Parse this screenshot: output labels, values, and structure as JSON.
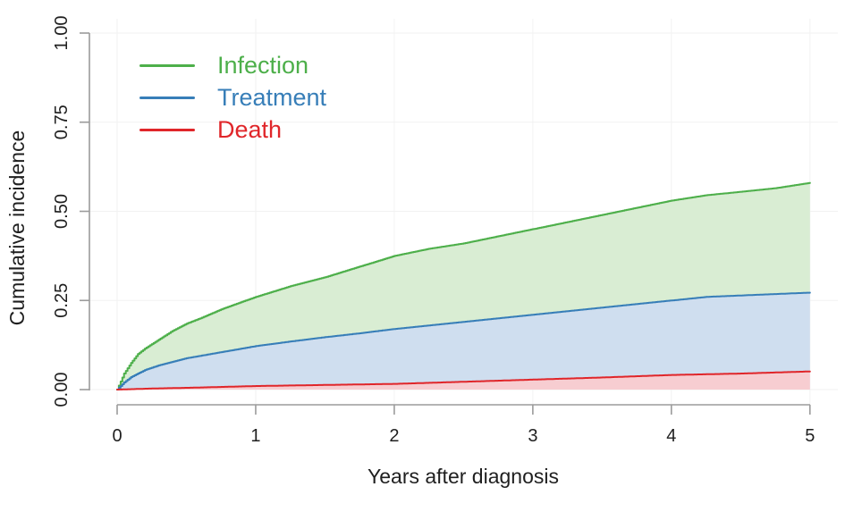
{
  "chart_data": {
    "type": "area",
    "title": "",
    "xlabel": "Years after diagnosis",
    "ylabel": "Cumulative incidence",
    "xlim": [
      0,
      5
    ],
    "ylim": [
      0,
      1
    ],
    "grid": true,
    "grid_color": "#f2f2f2",
    "axis_color": "#9b9b9b",
    "text_color": "#1f1f1f",
    "legend_position": "top-left",
    "x_ticks": [
      {
        "value": 0,
        "label": "0"
      },
      {
        "value": 1,
        "label": "1"
      },
      {
        "value": 2,
        "label": "2"
      },
      {
        "value": 3,
        "label": "3"
      },
      {
        "value": 4,
        "label": "4"
      },
      {
        "value": 5,
        "label": "5"
      }
    ],
    "y_ticks": [
      {
        "value": 0.0,
        "label": "0.00"
      },
      {
        "value": 0.25,
        "label": "0.25"
      },
      {
        "value": 0.5,
        "label": "0.50"
      },
      {
        "value": 0.75,
        "label": "0.75"
      },
      {
        "value": 1.0,
        "label": "1.00"
      }
    ],
    "series": [
      {
        "name": "Infection",
        "color": "#4daf4a",
        "fill": "#d9edd3",
        "points": [
          [
            0,
            0
          ],
          [
            0.05,
            0.045
          ],
          [
            0.1,
            0.075
          ],
          [
            0.15,
            0.1
          ],
          [
            0.2,
            0.115
          ],
          [
            0.3,
            0.14
          ],
          [
            0.4,
            0.165
          ],
          [
            0.5,
            0.185
          ],
          [
            0.6,
            0.2
          ],
          [
            0.75,
            0.225
          ],
          [
            1,
            0.26
          ],
          [
            1.25,
            0.29
          ],
          [
            1.5,
            0.315
          ],
          [
            1.75,
            0.345
          ],
          [
            2,
            0.375
          ],
          [
            2.25,
            0.395
          ],
          [
            2.5,
            0.41
          ],
          [
            2.75,
            0.43
          ],
          [
            3,
            0.45
          ],
          [
            3.25,
            0.47
          ],
          [
            3.5,
            0.49
          ],
          [
            3.75,
            0.51
          ],
          [
            4,
            0.53
          ],
          [
            4.25,
            0.545
          ],
          [
            4.5,
            0.555
          ],
          [
            4.75,
            0.565
          ],
          [
            5,
            0.58
          ]
        ]
      },
      {
        "name": "Treatment",
        "color": "#377eb8",
        "fill": "#cfdeef",
        "points": [
          [
            0,
            0
          ],
          [
            0.05,
            0.02
          ],
          [
            0.1,
            0.035
          ],
          [
            0.2,
            0.055
          ],
          [
            0.3,
            0.068
          ],
          [
            0.4,
            0.078
          ],
          [
            0.5,
            0.088
          ],
          [
            0.75,
            0.105
          ],
          [
            1,
            0.122
          ],
          [
            1.25,
            0.135
          ],
          [
            1.5,
            0.147
          ],
          [
            1.75,
            0.158
          ],
          [
            2,
            0.17
          ],
          [
            2.5,
            0.19
          ],
          [
            3,
            0.21
          ],
          [
            3.5,
            0.23
          ],
          [
            4,
            0.25
          ],
          [
            4.25,
            0.26
          ],
          [
            4.5,
            0.264
          ],
          [
            5,
            0.272
          ]
        ]
      },
      {
        "name": "Death",
        "color": "#e0262a",
        "fill": "#f7cdd1",
        "points": [
          [
            0,
            0
          ],
          [
            0.25,
            0.003
          ],
          [
            0.5,
            0.005
          ],
          [
            1,
            0.01
          ],
          [
            1.5,
            0.013
          ],
          [
            2,
            0.016
          ],
          [
            2.5,
            0.022
          ],
          [
            3,
            0.028
          ],
          [
            3.5,
            0.034
          ],
          [
            4,
            0.041
          ],
          [
            4.5,
            0.045
          ],
          [
            5,
            0.051
          ]
        ]
      }
    ]
  }
}
